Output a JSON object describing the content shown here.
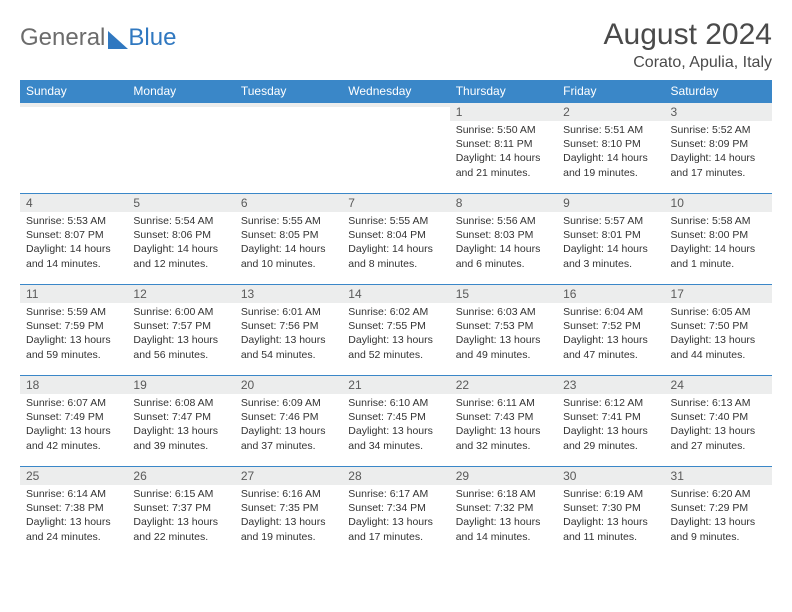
{
  "logo": {
    "general": "General",
    "blue": "Blue"
  },
  "title": "August 2024",
  "location": "Corato, Apulia, Italy",
  "colors": {
    "header_bg": "#3a87c8",
    "header_fg": "#ffffff",
    "daynum_bg": "#eceded",
    "row_border": "#3a87c8",
    "text": "#333333",
    "title_color": "#4a4a4a",
    "logo_gray": "#6c6c6c",
    "logo_blue": "#3078c0"
  },
  "weekdays": [
    "Sunday",
    "Monday",
    "Tuesday",
    "Wednesday",
    "Thursday",
    "Friday",
    "Saturday"
  ],
  "weeks": [
    [
      {
        "n": "",
        "sr": "",
        "ss": "",
        "dl": ""
      },
      {
        "n": "",
        "sr": "",
        "ss": "",
        "dl": ""
      },
      {
        "n": "",
        "sr": "",
        "ss": "",
        "dl": ""
      },
      {
        "n": "",
        "sr": "",
        "ss": "",
        "dl": ""
      },
      {
        "n": "1",
        "sr": "Sunrise: 5:50 AM",
        "ss": "Sunset: 8:11 PM",
        "dl": "Daylight: 14 hours and 21 minutes."
      },
      {
        "n": "2",
        "sr": "Sunrise: 5:51 AM",
        "ss": "Sunset: 8:10 PM",
        "dl": "Daylight: 14 hours and 19 minutes."
      },
      {
        "n": "3",
        "sr": "Sunrise: 5:52 AM",
        "ss": "Sunset: 8:09 PM",
        "dl": "Daylight: 14 hours and 17 minutes."
      }
    ],
    [
      {
        "n": "4",
        "sr": "Sunrise: 5:53 AM",
        "ss": "Sunset: 8:07 PM",
        "dl": "Daylight: 14 hours and 14 minutes."
      },
      {
        "n": "5",
        "sr": "Sunrise: 5:54 AM",
        "ss": "Sunset: 8:06 PM",
        "dl": "Daylight: 14 hours and 12 minutes."
      },
      {
        "n": "6",
        "sr": "Sunrise: 5:55 AM",
        "ss": "Sunset: 8:05 PM",
        "dl": "Daylight: 14 hours and 10 minutes."
      },
      {
        "n": "7",
        "sr": "Sunrise: 5:55 AM",
        "ss": "Sunset: 8:04 PM",
        "dl": "Daylight: 14 hours and 8 minutes."
      },
      {
        "n": "8",
        "sr": "Sunrise: 5:56 AM",
        "ss": "Sunset: 8:03 PM",
        "dl": "Daylight: 14 hours and 6 minutes."
      },
      {
        "n": "9",
        "sr": "Sunrise: 5:57 AM",
        "ss": "Sunset: 8:01 PM",
        "dl": "Daylight: 14 hours and 3 minutes."
      },
      {
        "n": "10",
        "sr": "Sunrise: 5:58 AM",
        "ss": "Sunset: 8:00 PM",
        "dl": "Daylight: 14 hours and 1 minute."
      }
    ],
    [
      {
        "n": "11",
        "sr": "Sunrise: 5:59 AM",
        "ss": "Sunset: 7:59 PM",
        "dl": "Daylight: 13 hours and 59 minutes."
      },
      {
        "n": "12",
        "sr": "Sunrise: 6:00 AM",
        "ss": "Sunset: 7:57 PM",
        "dl": "Daylight: 13 hours and 56 minutes."
      },
      {
        "n": "13",
        "sr": "Sunrise: 6:01 AM",
        "ss": "Sunset: 7:56 PM",
        "dl": "Daylight: 13 hours and 54 minutes."
      },
      {
        "n": "14",
        "sr": "Sunrise: 6:02 AM",
        "ss": "Sunset: 7:55 PM",
        "dl": "Daylight: 13 hours and 52 minutes."
      },
      {
        "n": "15",
        "sr": "Sunrise: 6:03 AM",
        "ss": "Sunset: 7:53 PM",
        "dl": "Daylight: 13 hours and 49 minutes."
      },
      {
        "n": "16",
        "sr": "Sunrise: 6:04 AM",
        "ss": "Sunset: 7:52 PM",
        "dl": "Daylight: 13 hours and 47 minutes."
      },
      {
        "n": "17",
        "sr": "Sunrise: 6:05 AM",
        "ss": "Sunset: 7:50 PM",
        "dl": "Daylight: 13 hours and 44 minutes."
      }
    ],
    [
      {
        "n": "18",
        "sr": "Sunrise: 6:07 AM",
        "ss": "Sunset: 7:49 PM",
        "dl": "Daylight: 13 hours and 42 minutes."
      },
      {
        "n": "19",
        "sr": "Sunrise: 6:08 AM",
        "ss": "Sunset: 7:47 PM",
        "dl": "Daylight: 13 hours and 39 minutes."
      },
      {
        "n": "20",
        "sr": "Sunrise: 6:09 AM",
        "ss": "Sunset: 7:46 PM",
        "dl": "Daylight: 13 hours and 37 minutes."
      },
      {
        "n": "21",
        "sr": "Sunrise: 6:10 AM",
        "ss": "Sunset: 7:45 PM",
        "dl": "Daylight: 13 hours and 34 minutes."
      },
      {
        "n": "22",
        "sr": "Sunrise: 6:11 AM",
        "ss": "Sunset: 7:43 PM",
        "dl": "Daylight: 13 hours and 32 minutes."
      },
      {
        "n": "23",
        "sr": "Sunrise: 6:12 AM",
        "ss": "Sunset: 7:41 PM",
        "dl": "Daylight: 13 hours and 29 minutes."
      },
      {
        "n": "24",
        "sr": "Sunrise: 6:13 AM",
        "ss": "Sunset: 7:40 PM",
        "dl": "Daylight: 13 hours and 27 minutes."
      }
    ],
    [
      {
        "n": "25",
        "sr": "Sunrise: 6:14 AM",
        "ss": "Sunset: 7:38 PM",
        "dl": "Daylight: 13 hours and 24 minutes."
      },
      {
        "n": "26",
        "sr": "Sunrise: 6:15 AM",
        "ss": "Sunset: 7:37 PM",
        "dl": "Daylight: 13 hours and 22 minutes."
      },
      {
        "n": "27",
        "sr": "Sunrise: 6:16 AM",
        "ss": "Sunset: 7:35 PM",
        "dl": "Daylight: 13 hours and 19 minutes."
      },
      {
        "n": "28",
        "sr": "Sunrise: 6:17 AM",
        "ss": "Sunset: 7:34 PM",
        "dl": "Daylight: 13 hours and 17 minutes."
      },
      {
        "n": "29",
        "sr": "Sunrise: 6:18 AM",
        "ss": "Sunset: 7:32 PM",
        "dl": "Daylight: 13 hours and 14 minutes."
      },
      {
        "n": "30",
        "sr": "Sunrise: 6:19 AM",
        "ss": "Sunset: 7:30 PM",
        "dl": "Daylight: 13 hours and 11 minutes."
      },
      {
        "n": "31",
        "sr": "Sunrise: 6:20 AM",
        "ss": "Sunset: 7:29 PM",
        "dl": "Daylight: 13 hours and 9 minutes."
      }
    ]
  ]
}
